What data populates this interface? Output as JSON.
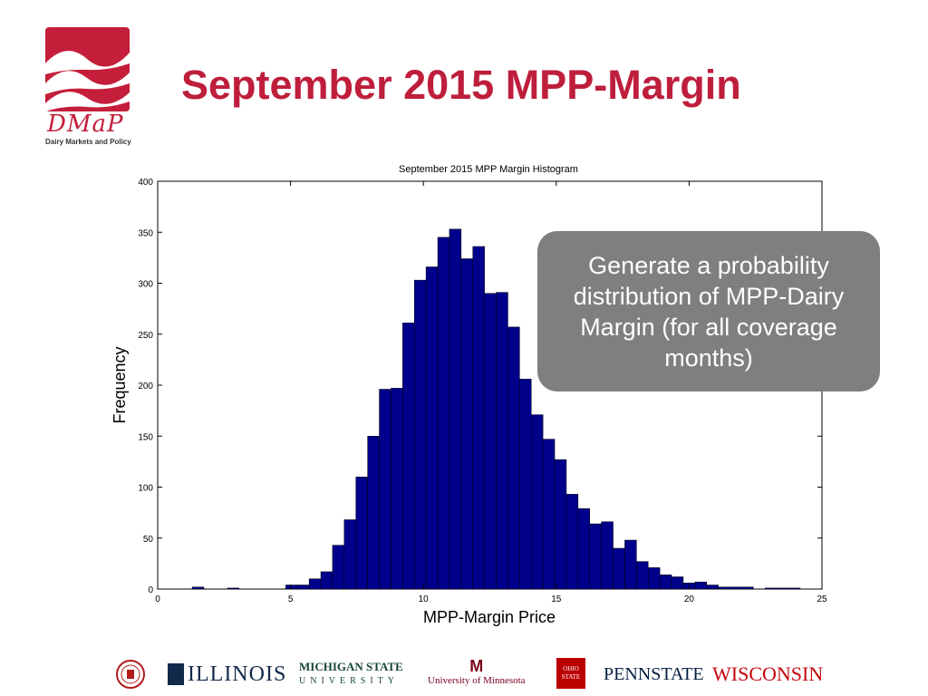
{
  "header": {
    "title": "September 2015 MPP-Margin",
    "logo_text": "DMaP",
    "logo_subtitle": "Dairy Markets and Policy"
  },
  "callout": {
    "text": "Generate a probability distribution of MPP-Dairy Margin (for all coverage months)"
  },
  "footer": {
    "logos": [
      "ILLINOIS",
      "MICHIGAN STATE",
      "UNIVERSITY",
      "University of Minnesota",
      "OHIO STATE",
      "PENNSTATE",
      "WISCONSIN"
    ]
  },
  "colors": {
    "title": "#be1e3c",
    "bar": "#00008b",
    "callout_bg": "#7f7f7f"
  },
  "chart_data": {
    "type": "bar",
    "title": "September 2015 MPP Margin Histogram",
    "xlabel": "MPP-Margin Price",
    "ylabel": "Frequency",
    "xlim": [
      0,
      25
    ],
    "ylim": [
      0,
      400
    ],
    "xticks": [
      0,
      5,
      10,
      15,
      20,
      25
    ],
    "yticks": [
      0,
      50,
      100,
      150,
      200,
      250,
      300,
      350,
      400
    ],
    "bin_start": 1.3,
    "bin_width": 0.44,
    "values": [
      2,
      0,
      0,
      1,
      0,
      0,
      0,
      0,
      4,
      4,
      10,
      17,
      43,
      68,
      110,
      150,
      196,
      197,
      261,
      303,
      316,
      345,
      353,
      324,
      336,
      290,
      291,
      257,
      206,
      171,
      147,
      127,
      93,
      79,
      64,
      66,
      40,
      48,
      27,
      21,
      14,
      12,
      6,
      7,
      4,
      2,
      2,
      2,
      0,
      1,
      1,
      1
    ]
  }
}
